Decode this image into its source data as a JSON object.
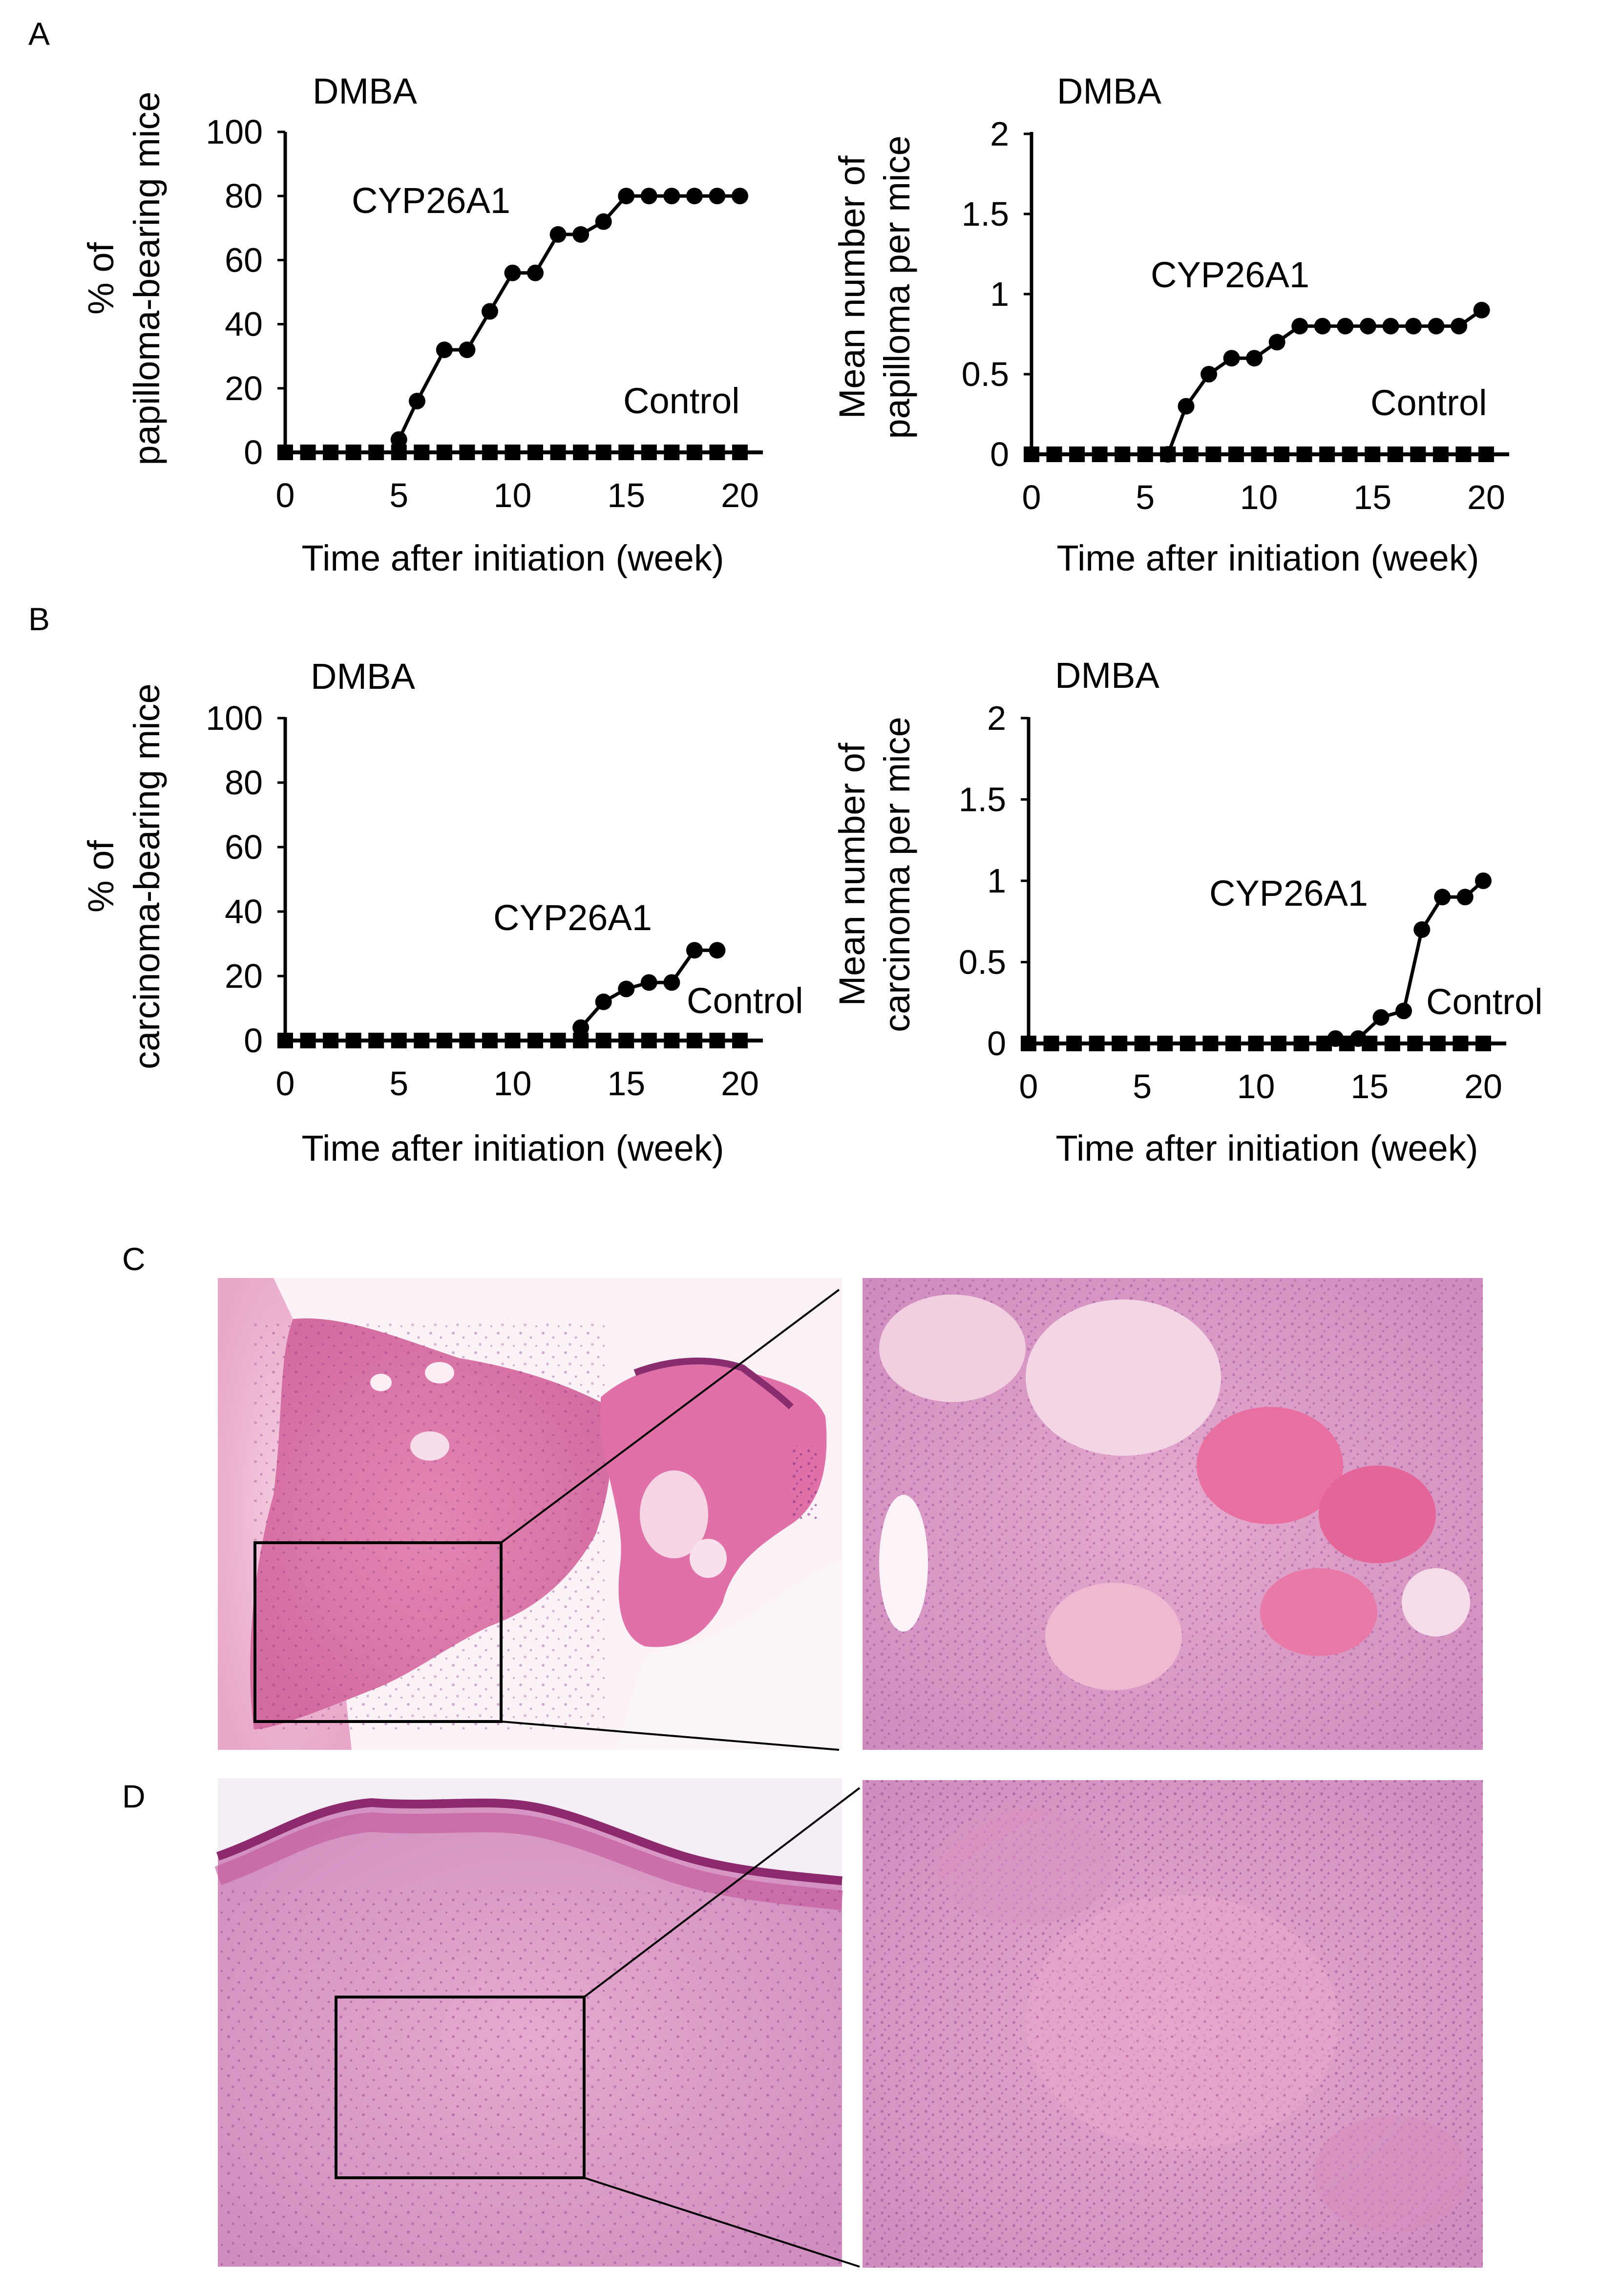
{
  "panel_labels": {
    "a": "A",
    "b": "B",
    "c": "C",
    "d": "D"
  },
  "chart_data": [
    {
      "panel": "A",
      "type": "line",
      "title": "DMBA",
      "xlabel": "Time after initiation (week)",
      "ylabel_lines": [
        "% of",
        "papilloma-bearing mice"
      ],
      "xlim": [
        0,
        20
      ],
      "ylim": [
        0,
        100
      ],
      "xticks": [
        0,
        5,
        10,
        15,
        20
      ],
      "yticks": [
        0,
        20,
        40,
        60,
        80,
        100
      ],
      "series": [
        {
          "name": "CYP26A1",
          "marker": "circle",
          "x": [
            5,
            5.8,
            7,
            8,
            9,
            10,
            11,
            12,
            13,
            14,
            15,
            16,
            17,
            18,
            19,
            20
          ],
          "y": [
            4,
            16,
            32,
            32,
            44,
            56,
            56,
            68,
            68,
            72,
            80,
            80,
            80,
            80,
            80,
            80
          ]
        },
        {
          "name": "Control",
          "marker": "square",
          "x": [
            0,
            1,
            2,
            3,
            4,
            5,
            6,
            7,
            8,
            9,
            10,
            11,
            12,
            13,
            14,
            15,
            16,
            17,
            18,
            19,
            20
          ],
          "y": [
            0,
            0,
            0,
            0,
            0,
            0,
            0,
            0,
            0,
            0,
            0,
            0,
            0,
            0,
            0,
            0,
            0,
            0,
            0,
            0,
            0
          ]
        }
      ],
      "annotations": [
        "CYP26A1",
        "Control"
      ]
    },
    {
      "panel": "A",
      "type": "line",
      "title": "DMBA",
      "xlabel": "Time after initiation (week)",
      "ylabel_lines": [
        "Mean number of",
        "papilloma per mice"
      ],
      "xlim": [
        0,
        20
      ],
      "ylim": [
        0,
        2
      ],
      "xticks": [
        0,
        5,
        10,
        15,
        20
      ],
      "yticks": [
        0,
        0.5,
        1,
        1.5,
        2
      ],
      "series": [
        {
          "name": "CYP26A1",
          "marker": "circle",
          "x": [
            6,
            6.8,
            7.8,
            8.8,
            9.8,
            10.8,
            11.8,
            12.8,
            13.8,
            14.8,
            15.8,
            16.8,
            17.8,
            18.8,
            19.8
          ],
          "y": [
            0,
            0.3,
            0.5,
            0.6,
            0.6,
            0.7,
            0.8,
            0.8,
            0.8,
            0.8,
            0.8,
            0.8,
            0.8,
            0.8,
            0.9
          ]
        },
        {
          "name": "Control",
          "marker": "square",
          "x": [
            0,
            1,
            2,
            3,
            4,
            5,
            6,
            7,
            8,
            9,
            10,
            11,
            12,
            13,
            14,
            15,
            16,
            17,
            18,
            19,
            20
          ],
          "y": [
            0,
            0,
            0,
            0,
            0,
            0,
            0,
            0,
            0,
            0,
            0,
            0,
            0,
            0,
            0,
            0,
            0,
            0,
            0,
            0,
            0
          ]
        }
      ],
      "annotations": [
        "CYP26A1",
        "Control"
      ]
    },
    {
      "panel": "B",
      "type": "line",
      "title": "DMBA",
      "xlabel": "Time after initiation (week)",
      "ylabel_lines": [
        "% of",
        "carcinoma-bearing mice"
      ],
      "xlim": [
        0,
        20
      ],
      "ylim": [
        0,
        100
      ],
      "xticks": [
        0,
        5,
        10,
        15,
        20
      ],
      "yticks": [
        0,
        20,
        40,
        60,
        80,
        100
      ],
      "series": [
        {
          "name": "CYP26A1",
          "marker": "circle",
          "x": [
            13,
            14,
            15,
            16,
            17,
            18,
            19
          ],
          "y": [
            4,
            12,
            16,
            18,
            18,
            28,
            28
          ]
        },
        {
          "name": "Control",
          "marker": "square",
          "x": [
            0,
            1,
            2,
            3,
            4,
            5,
            6,
            7,
            8,
            9,
            10,
            11,
            12,
            13,
            14,
            15,
            16,
            17,
            18,
            19,
            20
          ],
          "y": [
            0,
            0,
            0,
            0,
            0,
            0,
            0,
            0,
            0,
            0,
            0,
            0,
            0,
            0,
            0,
            0,
            0,
            0,
            0,
            0,
            0
          ]
        }
      ],
      "annotations": [
        "CYP26A1",
        "Control"
      ]
    },
    {
      "panel": "B",
      "type": "line",
      "title": "DMBA",
      "xlabel": "Time after initiation (week)",
      "ylabel_lines": [
        "Mean number of",
        "carcinoma per mice"
      ],
      "xlim": [
        0,
        20
      ],
      "ylim": [
        0,
        2
      ],
      "xticks": [
        0,
        5,
        10,
        15,
        20
      ],
      "yticks": [
        0,
        0.5,
        1,
        1.5,
        2
      ],
      "series": [
        {
          "name": "CYP26A1",
          "marker": "circle",
          "x": [
            13.5,
            14.5,
            15.5,
            16.5,
            17.3,
            18.2,
            19.2,
            20
          ],
          "y": [
            0.03,
            0.03,
            0.16,
            0.2,
            0.7,
            0.9,
            0.9,
            1.0
          ]
        },
        {
          "name": "Control",
          "marker": "square",
          "x": [
            0,
            1,
            2,
            3,
            4,
            5,
            6,
            7,
            8,
            9,
            10,
            11,
            12,
            13,
            14,
            15,
            16,
            17,
            18,
            19,
            20
          ],
          "y": [
            0,
            0,
            0,
            0,
            0,
            0,
            0,
            0,
            0,
            0,
            0,
            0,
            0,
            0,
            0,
            0,
            0,
            0,
            0,
            0,
            0
          ]
        }
      ],
      "annotations": [
        "CYP26A1",
        "Control"
      ]
    }
  ]
}
